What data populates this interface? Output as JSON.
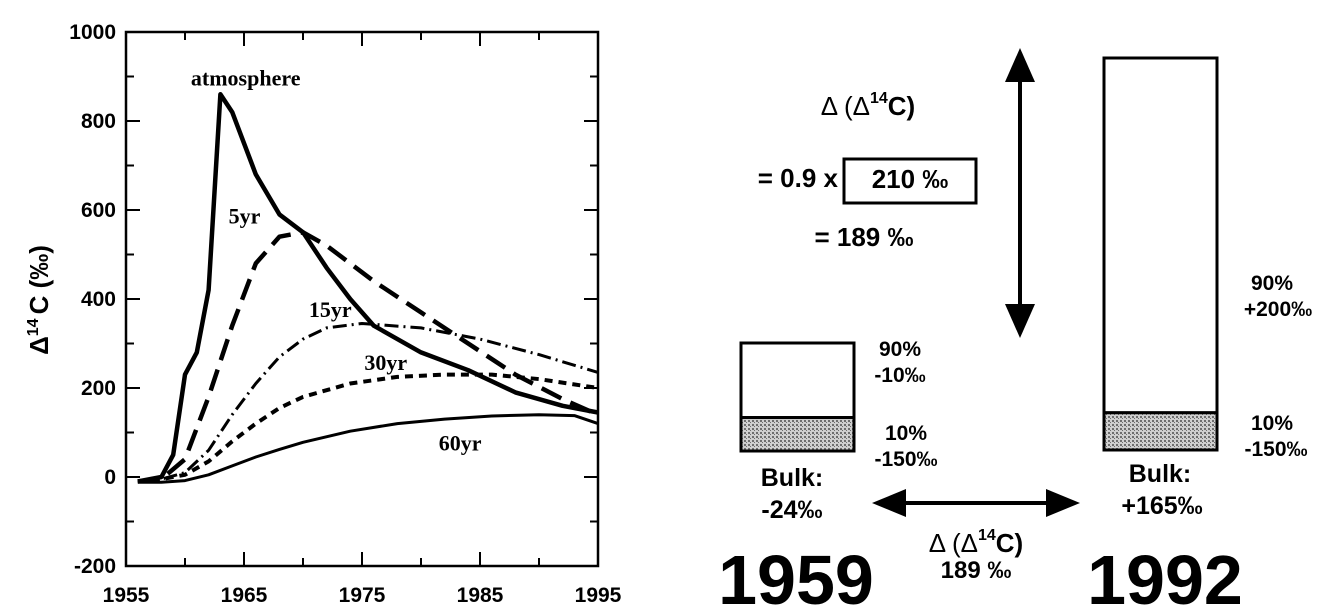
{
  "chart_data": {
    "type": "line",
    "ylabel": "Δ",
    "ylabel_sup": "14",
    "ylabel_rest": "C (‰)",
    "xlim": [
      1955,
      1995
    ],
    "ylim": [
      -200,
      1000
    ],
    "xticks": [
      "1955",
      "1965",
      "1975",
      "1985",
      "1995"
    ],
    "yticks": [
      "-200",
      "0",
      "200",
      "400",
      "600",
      "800",
      "1000"
    ],
    "grid": false,
    "series": [
      {
        "name": "atmosphere",
        "style": "solid-thick",
        "points": [
          [
            1956,
            -10
          ],
          [
            1958,
            0
          ],
          [
            1959,
            50
          ],
          [
            1960,
            230
          ],
          [
            1961,
            280
          ],
          [
            1962,
            420
          ],
          [
            1963,
            860
          ],
          [
            1964,
            820
          ],
          [
            1966,
            680
          ],
          [
            1968,
            590
          ],
          [
            1970,
            550
          ],
          [
            1972,
            470
          ],
          [
            1974,
            400
          ],
          [
            1976,
            340
          ],
          [
            1980,
            280
          ],
          [
            1984,
            240
          ],
          [
            1988,
            190
          ],
          [
            1992,
            160
          ],
          [
            1995,
            145
          ]
        ]
      },
      {
        "name": "5yr",
        "style": "dash-long",
        "points": [
          [
            1956,
            -10
          ],
          [
            1958,
            -5
          ],
          [
            1960,
            40
          ],
          [
            1962,
            180
          ],
          [
            1964,
            340
          ],
          [
            1966,
            480
          ],
          [
            1968,
            540
          ],
          [
            1970,
            550
          ],
          [
            1972,
            520
          ],
          [
            1976,
            440
          ],
          [
            1980,
            370
          ],
          [
            1984,
            300
          ],
          [
            1988,
            230
          ],
          [
            1992,
            175
          ],
          [
            1995,
            140
          ]
        ]
      },
      {
        "name": "15yr",
        "style": "dash-dot",
        "points": [
          [
            1956,
            -10
          ],
          [
            1958,
            -5
          ],
          [
            1960,
            10
          ],
          [
            1962,
            60
          ],
          [
            1964,
            140
          ],
          [
            1966,
            210
          ],
          [
            1968,
            270
          ],
          [
            1970,
            310
          ],
          [
            1972,
            335
          ],
          [
            1975,
            345
          ],
          [
            1980,
            335
          ],
          [
            1985,
            310
          ],
          [
            1990,
            275
          ],
          [
            1995,
            235
          ]
        ]
      },
      {
        "name": "30yr",
        "style": "dash-short",
        "points": [
          [
            1956,
            -10
          ],
          [
            1958,
            -5
          ],
          [
            1960,
            5
          ],
          [
            1962,
            35
          ],
          [
            1964,
            80
          ],
          [
            1966,
            120
          ],
          [
            1968,
            155
          ],
          [
            1970,
            180
          ],
          [
            1974,
            210
          ],
          [
            1978,
            225
          ],
          [
            1982,
            230
          ],
          [
            1986,
            230
          ],
          [
            1990,
            220
          ],
          [
            1995,
            200
          ]
        ]
      },
      {
        "name": "60yr",
        "style": "solid-thin",
        "points": [
          [
            1956,
            -12
          ],
          [
            1958,
            -12
          ],
          [
            1960,
            -8
          ],
          [
            1962,
            5
          ],
          [
            1964,
            25
          ],
          [
            1966,
            45
          ],
          [
            1968,
            62
          ],
          [
            1970,
            78
          ],
          [
            1974,
            103
          ],
          [
            1978,
            120
          ],
          [
            1982,
            130
          ],
          [
            1986,
            137
          ],
          [
            1990,
            140
          ],
          [
            1993,
            138
          ],
          [
            1995,
            120
          ]
        ]
      }
    ]
  },
  "diagram": {
    "top_formula": {
      "delta_open": "Δ (Δ",
      "sup": "14",
      "close": "C)",
      "line2_prefix": "= 0.9 x",
      "boxed_value": "210 ‰",
      "line3": "= 189 ‰"
    },
    "year_1959": {
      "year": "1959",
      "upper_label_1": "90%",
      "upper_label_2": "-10‰",
      "lower_label_1": "10%",
      "lower_label_2": "-150‰",
      "bulk_1": "Bulk:",
      "bulk_2": "-24‰",
      "upper_fraction": 0.9,
      "lower_fraction": 0.1
    },
    "year_1992": {
      "year": "1992",
      "upper_label_1": "90%",
      "upper_label_2": "+200‰",
      "lower_label_1": "10%",
      "lower_label_2": "-150‰",
      "bulk_1": "Bulk:",
      "bulk_2": "+165‰",
      "upper_fraction": 0.9,
      "lower_fraction": 0.1
    },
    "bottom_formula": {
      "delta_open": "Δ (Δ",
      "sup": "14",
      "close": "C)",
      "value": "189 ‰"
    },
    "hatch_color": "#8a8a8a"
  }
}
